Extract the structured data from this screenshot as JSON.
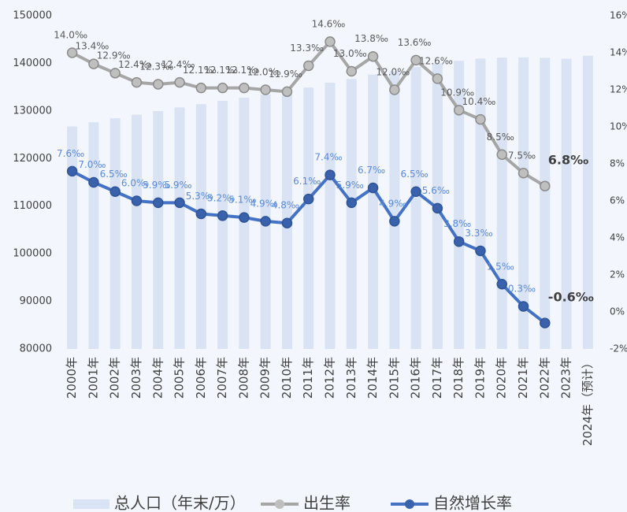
{
  "chart_data": {
    "type": "bar_line",
    "categories": [
      "2000年",
      "2001年",
      "2002年",
      "2003年",
      "2004年",
      "2005年",
      "2006年",
      "2007年",
      "2008年",
      "2009年",
      "2010年",
      "2011年",
      "2012年",
      "2013年",
      "2014年",
      "2015年",
      "2016年",
      "2017年",
      "2018年",
      "2019年",
      "2020年",
      "2021年",
      "2022年",
      "2023年",
      "2024年（预计）"
    ],
    "series": [
      {
        "name": "总人口（年末/万）",
        "type": "bar",
        "color": "#dae3f3",
        "values": [
          126743,
          127627,
          128453,
          129227,
          129988,
          130756,
          131448,
          132129,
          132802,
          133450,
          134091,
          134916,
          135922,
          136726,
          137646,
          138326,
          139232,
          140011,
          140541,
          141008,
          141212,
          141260,
          141175,
          140967,
          141600
        ]
      },
      {
        "name": "出生率",
        "type": "line",
        "axis": "y2",
        "color": "#a6a6a6",
        "values": [
          14.0,
          13.4,
          12.9,
          12.4,
          12.3,
          12.4,
          12.1,
          12.1,
          12.1,
          12.0,
          11.9,
          13.3,
          14.6,
          13.0,
          13.8,
          12.0,
          13.6,
          12.6,
          10.9,
          10.4,
          8.5,
          7.5,
          6.8,
          null,
          null
        ],
        "value_labels": [
          "14.0‰",
          "13.4‰",
          "12.9‰",
          "12.4‰",
          "12.3‰",
          "12.4‰",
          "12.1‰",
          "12.1‰",
          "12.1‰",
          "12.0‰",
          "11.9‰",
          "13.3‰",
          "14.6‰",
          "13.0‰",
          "13.8‰",
          "12.0‰",
          "13.6‰",
          "12.6‰",
          "10.9‰",
          "10.4‰",
          "8.5‰",
          "7.5‰",
          "6.8‰",
          null,
          null
        ]
      },
      {
        "name": "自然增长率",
        "type": "line",
        "axis": "y2",
        "color": "#4472c4",
        "values": [
          7.6,
          7.0,
          6.5,
          6.0,
          5.9,
          5.9,
          5.3,
          5.2,
          5.1,
          4.9,
          4.8,
          6.1,
          7.4,
          5.9,
          6.7,
          4.9,
          6.5,
          5.6,
          3.8,
          3.3,
          1.5,
          0.3,
          -0.6,
          null,
          null
        ],
        "value_labels": [
          "7.6‰",
          "7.0‰",
          "6.5‰",
          "6.0‰",
          "5.9‰",
          "5.9‰",
          "5.3‰",
          "5.2‰",
          "5.1‰",
          "4.9‰",
          "4.8‰",
          "6.1‰",
          "7.4‰",
          "5.9‰",
          "6.7‰",
          "4.9‰",
          "6.5‰",
          "5.6‰",
          "3.8‰",
          "3.3‰",
          "1.5‰",
          "0.3‰",
          "-0.6‰",
          null,
          null
        ]
      }
    ],
    "ylim": [
      80000,
      150000
    ],
    "yticks": [
      80000,
      90000,
      100000,
      110000,
      120000,
      130000,
      140000,
      150000
    ],
    "y2lim": [
      -2,
      16
    ],
    "y2ticks": [
      {
        "value": -2,
        "label": "-2%"
      },
      {
        "value": 0,
        "label": "0%"
      },
      {
        "value": 2,
        "label": "2%"
      },
      {
        "value": 4,
        "label": "4%"
      },
      {
        "value": 6,
        "label": "6%"
      },
      {
        "value": 8,
        "label": "8%"
      },
      {
        "value": 10,
        "label": "10%"
      },
      {
        "value": 12,
        "label": "12%"
      },
      {
        "value": 14,
        "label": "14%"
      },
      {
        "value": 16,
        "label": "16%"
      }
    ],
    "legend": "bottom"
  }
}
